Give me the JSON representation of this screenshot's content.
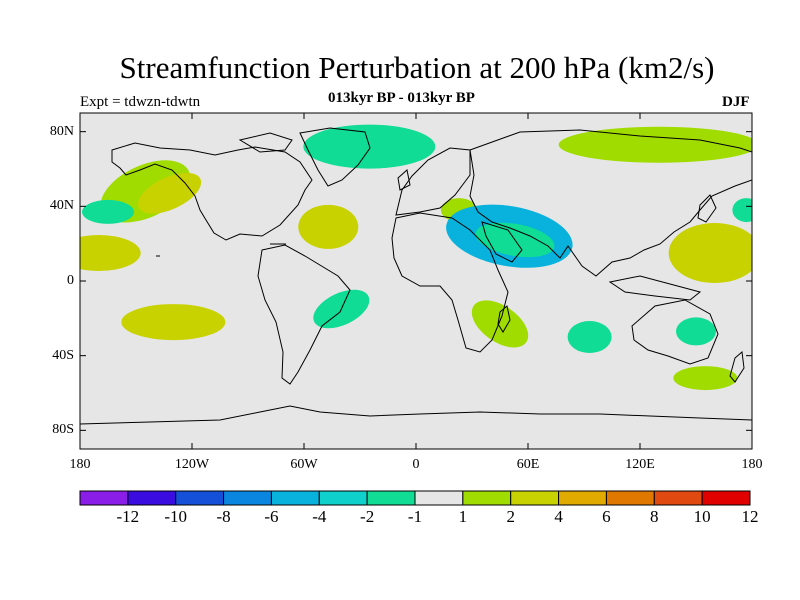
{
  "header": {
    "title": "Streamfunction Perturbation at 200 hPa (km2/s)",
    "experiment": "Expt = tdwzn-tdwtn",
    "subtitle": "013kyr BP - 013kyr BP",
    "season": "DJF"
  },
  "map": {
    "projection": "cylindrical equidistant",
    "lon_range": [
      -180,
      180
    ],
    "lat_range": [
      -90,
      90
    ],
    "lat_ticks": [
      "80N",
      "40N",
      "0",
      "40S",
      "80S"
    ],
    "lon_ticks": [
      "180",
      "120W",
      "60W",
      "0",
      "60E",
      "120E",
      "180"
    ]
  },
  "colorbar": {
    "labels": [
      "-12",
      "-10",
      "-8",
      "-6",
      "-4",
      "-2",
      "-1",
      "1",
      "2",
      "4",
      "6",
      "8",
      "10",
      "12"
    ],
    "colors": [
      "#8a1ee8",
      "#3a0ce0",
      "#1450d8",
      "#0a86e0",
      "#08b2dc",
      "#10d0cc",
      "#10dc96",
      "#e6e6e6",
      "#a0dc00",
      "#c8d200",
      "#e0aa00",
      "#e07800",
      "#e04a10",
      "#e00000"
    ]
  },
  "chart_data": {
    "type": "heatmap",
    "title": "Streamfunction Perturbation at 200 hPa (km2/s)",
    "subtitle": "013kyr BP - 013kyr BP",
    "season": "DJF",
    "levels": [
      -12,
      -10,
      -8,
      -6,
      -4,
      -2,
      -1,
      1,
      2,
      4,
      6,
      8,
      10,
      12
    ],
    "regions": [
      {
        "center_lon": -132,
        "center_lat": 47,
        "value_band": "2 to 4",
        "color": "#c8d200"
      },
      {
        "center_lon": -145,
        "center_lat": 48,
        "value_band": "1 to 2",
        "color": "#a0dc00"
      },
      {
        "center_lon": -170,
        "center_lat": 15,
        "value_band": "2 to 4",
        "color": "#c8d200"
      },
      {
        "center_lon": -165,
        "center_lat": 37,
        "value_band": "-2 to -1",
        "color": "#10dc96"
      },
      {
        "center_lon": -130,
        "center_lat": -22,
        "value_band": "2 to 4",
        "color": "#c8d200"
      },
      {
        "center_lon": -47,
        "center_lat": 29,
        "value_band": "2 to 4",
        "color": "#c8d200"
      },
      {
        "center_lon": -40,
        "center_lat": -15,
        "value_band": "-2 to -1",
        "color": "#10dc96"
      },
      {
        "center_lon": -25,
        "center_lat": 72,
        "value_band": "-2 to -1",
        "color": "#10dc96"
      },
      {
        "center_lon": 23,
        "center_lat": 38,
        "value_band": "1 to 2",
        "color": "#a0dc00"
      },
      {
        "center_lon": 50,
        "center_lat": 24,
        "value_band": "-4 to -2",
        "color": "#08b2dc"
      },
      {
        "center_lon": 53,
        "center_lat": 22,
        "value_band": "-2 to -1",
        "color": "#10dc96"
      },
      {
        "center_lon": 45,
        "center_lat": -23,
        "value_band": "1 to 2",
        "color": "#a0dc00"
      },
      {
        "center_lon": 93,
        "center_lat": -30,
        "value_band": "-2 to -1",
        "color": "#10dc96"
      },
      {
        "center_lon": 150,
        "center_lat": -27,
        "value_band": "-2 to -1",
        "color": "#10dc96"
      },
      {
        "center_lon": 160,
        "center_lat": 15,
        "value_band": "2 to 4",
        "color": "#c8d200"
      },
      {
        "center_lon": 155,
        "center_lat": -52,
        "value_band": "1 to 2",
        "color": "#a0dc00"
      },
      {
        "center_lon": 130,
        "center_lat": 73,
        "value_band": "1 to 2",
        "color": "#a0dc00"
      },
      {
        "center_lon": 177,
        "center_lat": 38,
        "value_band": "-2 to -1",
        "color": "#10dc96"
      }
    ]
  }
}
